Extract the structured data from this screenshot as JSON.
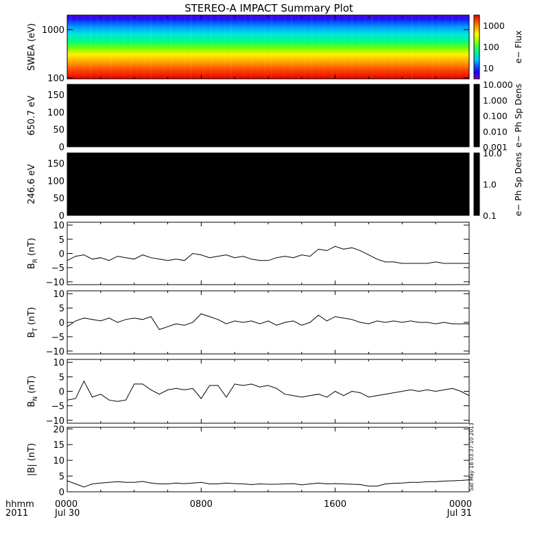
{
  "title": "STEREO-A IMPACT Summary Plot",
  "x_axis": {
    "label_line1": "hhmm",
    "label_line2": "2011",
    "ticks": [
      {
        "time": "0000",
        "date": "Jul 30",
        "hour": 0
      },
      {
        "time": "0800",
        "date": "",
        "hour": 8
      },
      {
        "time": "1600",
        "date": "",
        "hour": 16
      },
      {
        "time": "0000",
        "date": "Jul 31",
        "hour": 24
      }
    ]
  },
  "timestamp": "Sat May 18 03:37:10 2013",
  "colors": {
    "line": "#000000",
    "background": "#ffffff",
    "dens_fill": "#000000"
  },
  "chart_data": [
    {
      "type": "heatmap",
      "id": "swea",
      "ylabel": "SWEA (eV)",
      "yscale": "log",
      "ylim": [
        95,
        2000
      ],
      "yticks": [
        {
          "v": 100,
          "label": "100"
        },
        {
          "v": 1000,
          "label": "1000"
        }
      ],
      "colorbar": {
        "label": "e− Flux",
        "scale": "log",
        "range": [
          3,
          3000
        ],
        "ticks": [
          {
            "v": 10,
            "label": "10"
          },
          {
            "v": 100,
            "label": "100"
          },
          {
            "v": 1000,
            "label": "1000"
          }
        ]
      }
    },
    {
      "type": "heatmap",
      "id": "pad650",
      "ylabel": "650.7 eV",
      "ylim": [
        0,
        180
      ],
      "yticks": [
        {
          "v": 0,
          "label": "0"
        },
        {
          "v": 50,
          "label": "50"
        },
        {
          "v": 100,
          "label": "100"
        },
        {
          "v": 150,
          "label": "150"
        }
      ],
      "colorbar": {
        "label": "e− Ph Sp Dens",
        "scale": "log",
        "range": [
          0.001,
          10
        ],
        "ticks": [
          {
            "v": 0.001,
            "label": "0.001"
          },
          {
            "v": 0.01,
            "label": "0.010"
          },
          {
            "v": 0.1,
            "label": "0.100"
          },
          {
            "v": 1,
            "label": "1.000"
          },
          {
            "v": 10,
            "label": "10.000"
          }
        ]
      }
    },
    {
      "type": "heatmap",
      "id": "pad246",
      "ylabel": "246.6 eV",
      "ylim": [
        0,
        180
      ],
      "yticks": [
        {
          "v": 0,
          "label": "0"
        },
        {
          "v": 50,
          "label": "50"
        },
        {
          "v": 100,
          "label": "100"
        },
        {
          "v": 150,
          "label": "150"
        }
      ],
      "colorbar": {
        "label": "e− Ph Sp Dens",
        "scale": "log",
        "range": [
          0.1,
          10
        ],
        "ticks": [
          {
            "v": 0.1,
            "label": "0.1"
          },
          {
            "v": 1,
            "label": "1.0"
          },
          {
            "v": 10,
            "label": "10.0"
          }
        ]
      }
    },
    {
      "type": "line",
      "id": "br",
      "ylabel_main": "B",
      "ylabel_sub": "R",
      "ylabel_unit": " (nT)",
      "ylim": [
        -11,
        11
      ],
      "yticks": [
        {
          "v": -10,
          "label": "−10"
        },
        {
          "v": -5,
          "label": "−5"
        },
        {
          "v": 0,
          "label": "0"
        },
        {
          "v": 5,
          "label": "5"
        },
        {
          "v": 10,
          "label": "10"
        }
      ],
      "x": [
        0,
        0.5,
        1,
        1.5,
        2,
        2.5,
        3,
        3.5,
        4,
        4.5,
        5,
        5.5,
        6,
        6.5,
        7,
        7.5,
        8,
        8.5,
        9,
        9.5,
        10,
        10.5,
        11,
        11.5,
        12,
        12.5,
        13,
        13.5,
        14,
        14.5,
        15,
        15.5,
        16,
        16.5,
        17,
        17.5,
        18,
        18.5,
        19,
        19.5,
        20,
        20.5,
        21,
        21.5,
        22,
        22.5,
        23,
        23.5,
        24
      ],
      "y": [
        -2.5,
        -1.0,
        -0.5,
        -2.0,
        -1.5,
        -2.5,
        -1.0,
        -1.5,
        -2.0,
        -0.5,
        -1.5,
        -2.0,
        -2.5,
        -2.0,
        -2.5,
        0.0,
        -0.5,
        -1.5,
        -1.0,
        -0.5,
        -1.5,
        -1.0,
        -2.0,
        -2.5,
        -2.5,
        -1.5,
        -1.0,
        -1.5,
        -0.5,
        -1.0,
        1.5,
        1.0,
        2.5,
        1.5,
        2.0,
        1.0,
        -0.5,
        -2.0,
        -3.0,
        -3.0,
        -3.5,
        -3.5,
        -3.5,
        -3.5,
        -3.0,
        -3.5,
        -3.5,
        -3.5,
        -3.5
      ]
    },
    {
      "type": "line",
      "id": "bt",
      "ylabel_main": "B",
      "ylabel_sub": "T",
      "ylabel_unit": " (nT)",
      "ylim": [
        -11,
        11
      ],
      "yticks": [
        {
          "v": -10,
          "label": "−10"
        },
        {
          "v": -5,
          "label": "−5"
        },
        {
          "v": 0,
          "label": "0"
        },
        {
          "v": 5,
          "label": "5"
        },
        {
          "v": 10,
          "label": "10"
        }
      ],
      "x": [
        0,
        0.5,
        1,
        1.5,
        2,
        2.5,
        3,
        3.5,
        4,
        4.5,
        5,
        5.5,
        6,
        6.5,
        7,
        7.5,
        8,
        8.5,
        9,
        9.5,
        10,
        10.5,
        11,
        11.5,
        12,
        12.5,
        13,
        13.5,
        14,
        14.5,
        15,
        15.5,
        16,
        16.5,
        17,
        17.5,
        18,
        18.5,
        19,
        19.5,
        20,
        20.5,
        21,
        21.5,
        22,
        22.5,
        23,
        23.5,
        24
      ],
      "y": [
        -1.5,
        0.5,
        1.5,
        1.0,
        0.5,
        1.5,
        0.0,
        1.0,
        1.5,
        1.0,
        2.0,
        -2.5,
        -1.5,
        -0.5,
        -1.0,
        0.0,
        3.0,
        2.0,
        1.0,
        -0.5,
        0.5,
        0.0,
        0.5,
        -0.5,
        0.5,
        -1.0,
        0.0,
        0.5,
        -1.0,
        0.0,
        2.5,
        0.5,
        2.0,
        1.5,
        1.0,
        0.0,
        -0.5,
        0.5,
        0.0,
        0.5,
        0.0,
        0.5,
        0.0,
        0.0,
        -0.5,
        0.0,
        -0.5,
        -0.5,
        -0.5
      ]
    },
    {
      "type": "line",
      "id": "bn",
      "ylabel_main": "B",
      "ylabel_sub": "N",
      "ylabel_unit": " (nT)",
      "ylim": [
        -11,
        11
      ],
      "yticks": [
        {
          "v": -10,
          "label": "−10"
        },
        {
          "v": -5,
          "label": "−5"
        },
        {
          "v": 0,
          "label": "0"
        },
        {
          "v": 5,
          "label": "5"
        },
        {
          "v": 10,
          "label": "10"
        }
      ],
      "x": [
        0,
        0.5,
        1,
        1.5,
        2,
        2.5,
        3,
        3.5,
        4,
        4.5,
        5,
        5.5,
        6,
        6.5,
        7,
        7.5,
        8,
        8.5,
        9,
        9.5,
        10,
        10.5,
        11,
        11.5,
        12,
        12.5,
        13,
        13.5,
        14,
        14.5,
        15,
        15.5,
        16,
        16.5,
        17,
        17.5,
        18,
        18.5,
        19,
        19.5,
        20,
        20.5,
        21,
        21.5,
        22,
        22.5,
        23,
        23.5,
        24
      ],
      "y": [
        -3.0,
        -2.5,
        3.5,
        -2.0,
        -1.0,
        -3.0,
        -3.5,
        -3.0,
        2.5,
        2.5,
        0.5,
        -1.0,
        0.5,
        1.0,
        0.5,
        1.0,
        -2.5,
        2.0,
        2.0,
        -2.0,
        2.5,
        2.0,
        2.5,
        1.5,
        2.0,
        1.0,
        -1.0,
        -1.5,
        -2.0,
        -1.5,
        -1.0,
        -2.0,
        0.0,
        -1.5,
        0.0,
        -0.5,
        -2.0,
        -1.5,
        -1.0,
        -0.5,
        0.0,
        0.5,
        0.0,
        0.5,
        0.0,
        0.5,
        1.0,
        0.0,
        -1.5
      ]
    },
    {
      "type": "line",
      "id": "bmag",
      "ylabel_main": "|B|",
      "ylabel_sub": "",
      "ylabel_unit": " (nT)",
      "ylim": [
        0,
        20.5
      ],
      "yticks": [
        {
          "v": 0,
          "label": "0"
        },
        {
          "v": 5,
          "label": "5"
        },
        {
          "v": 10,
          "label": "10"
        },
        {
          "v": 15,
          "label": "15"
        },
        {
          "v": 20,
          "label": "20"
        }
      ],
      "x": [
        0,
        0.5,
        1,
        1.5,
        2,
        2.5,
        3,
        3.5,
        4,
        4.5,
        5,
        5.5,
        6,
        6.5,
        7,
        7.5,
        8,
        8.5,
        9,
        9.5,
        10,
        10.5,
        11,
        11.5,
        12,
        12.5,
        13,
        13.5,
        14,
        14.5,
        15,
        15.5,
        16,
        16.5,
        17,
        17.5,
        18,
        18.5,
        19,
        19.5,
        20,
        20.5,
        21,
        21.5,
        22,
        22.5,
        23,
        23.5,
        24
      ],
      "y": [
        3.5,
        2.5,
        1.5,
        2.5,
        2.8,
        3.0,
        3.2,
        3.0,
        3.0,
        3.3,
        2.8,
        2.5,
        2.5,
        2.8,
        2.6,
        2.8,
        3.0,
        2.5,
        2.5,
        2.8,
        2.6,
        2.5,
        2.3,
        2.5,
        2.4,
        2.4,
        2.5,
        2.6,
        2.2,
        2.5,
        2.8,
        2.5,
        2.6,
        2.5,
        2.4,
        2.3,
        1.8,
        1.8,
        2.5,
        2.7,
        2.8,
        3.0,
        3.0,
        3.2,
        3.2,
        3.4,
        3.5,
        3.6,
        3.8
      ]
    }
  ]
}
